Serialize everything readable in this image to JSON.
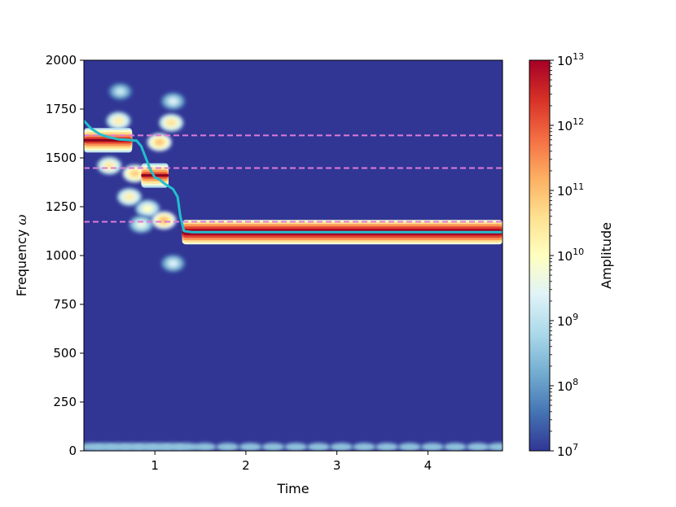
{
  "chart_data": {
    "type": "heatmap",
    "xlabel": "Time",
    "ylabel_prefix": "Frequency ",
    "ylabel_symbol": "ω",
    "xlim": [
      0.22,
      4.82
    ],
    "ylim": [
      0,
      2000
    ],
    "x_ticks": [
      1,
      2,
      3,
      4
    ],
    "y_ticks": [
      0,
      250,
      500,
      750,
      1000,
      1250,
      1500,
      1750,
      2000
    ],
    "colorbar": {
      "label": "Amplitude",
      "scale": "log",
      "range": [
        10000000.0,
        10000000000000.0
      ],
      "tick_base": "10",
      "tick_exponents": [
        "7",
        "8",
        "9",
        "10",
        "11",
        "12",
        "13"
      ],
      "colormap": [
        "#313695",
        "#4575b4",
        "#74add1",
        "#abd9e9",
        "#e0f3f8",
        "#ffffbf",
        "#fee090",
        "#fdae61",
        "#f46d43",
        "#d73027",
        "#a50026"
      ]
    },
    "background_color": "#313695",
    "reference_lines": {
      "color": "#e07ad6",
      "style": "dashed",
      "y": [
        1615,
        1448,
        1173
      ]
    },
    "ridge": {
      "color": "#22bfcc",
      "x": [
        0.22,
        0.3,
        0.4,
        0.5,
        0.6,
        0.7,
        0.8,
        0.85,
        0.9,
        0.95,
        1.0,
        1.05,
        1.1,
        1.15,
        1.2,
        1.25,
        1.28,
        1.32,
        1.4,
        4.82
      ],
      "y": [
        1690,
        1650,
        1620,
        1605,
        1595,
        1592,
        1588,
        1560,
        1500,
        1440,
        1400,
        1390,
        1370,
        1355,
        1340,
        1300,
        1200,
        1125,
        1120,
        1120
      ]
    },
    "bands": [
      {
        "y_center": 1120,
        "x_start": 1.3,
        "x_end": 4.82,
        "log_amplitude": 13.0
      },
      {
        "y_center": 1590,
        "x_start": 0.22,
        "x_end": 0.75,
        "log_amplitude": 12.3
      },
      {
        "y_center": 1410,
        "x_start": 0.85,
        "x_end": 1.15,
        "log_amplitude": 12.1
      }
    ],
    "blobs": [
      {
        "x": 0.6,
        "y": 1690,
        "log_amplitude": 10.3
      },
      {
        "x": 0.5,
        "y": 1460,
        "log_amplitude": 10.4
      },
      {
        "x": 0.72,
        "y": 1300,
        "log_amplitude": 10.3
      },
      {
        "x": 0.92,
        "y": 1240,
        "log_amplitude": 10.0
      },
      {
        "x": 0.78,
        "y": 1420,
        "log_amplitude": 10.8
      },
      {
        "x": 1.05,
        "y": 1580,
        "log_amplitude": 10.9
      },
      {
        "x": 1.18,
        "y": 1680,
        "log_amplitude": 10.5
      },
      {
        "x": 1.2,
        "y": 1790,
        "log_amplitude": 9.3
      },
      {
        "x": 0.62,
        "y": 1840,
        "log_amplitude": 9.1
      },
      {
        "x": 1.2,
        "y": 960,
        "log_amplitude": 9.3
      },
      {
        "x": 0.85,
        "y": 1160,
        "log_amplitude": 9.6
      },
      {
        "x": 1.1,
        "y": 1180,
        "log_amplitude": 11.0
      }
    ],
    "bottom_row_blobs": {
      "y": 20,
      "log_amplitude": 8.5,
      "x": [
        0.3,
        0.45,
        0.6,
        0.75,
        0.9,
        1.05,
        1.2,
        1.35,
        1.55,
        1.8,
        2.05,
        2.3,
        2.55,
        2.8,
        3.05,
        3.3,
        3.55,
        3.8,
        4.05,
        4.3,
        4.55,
        4.78
      ]
    }
  }
}
